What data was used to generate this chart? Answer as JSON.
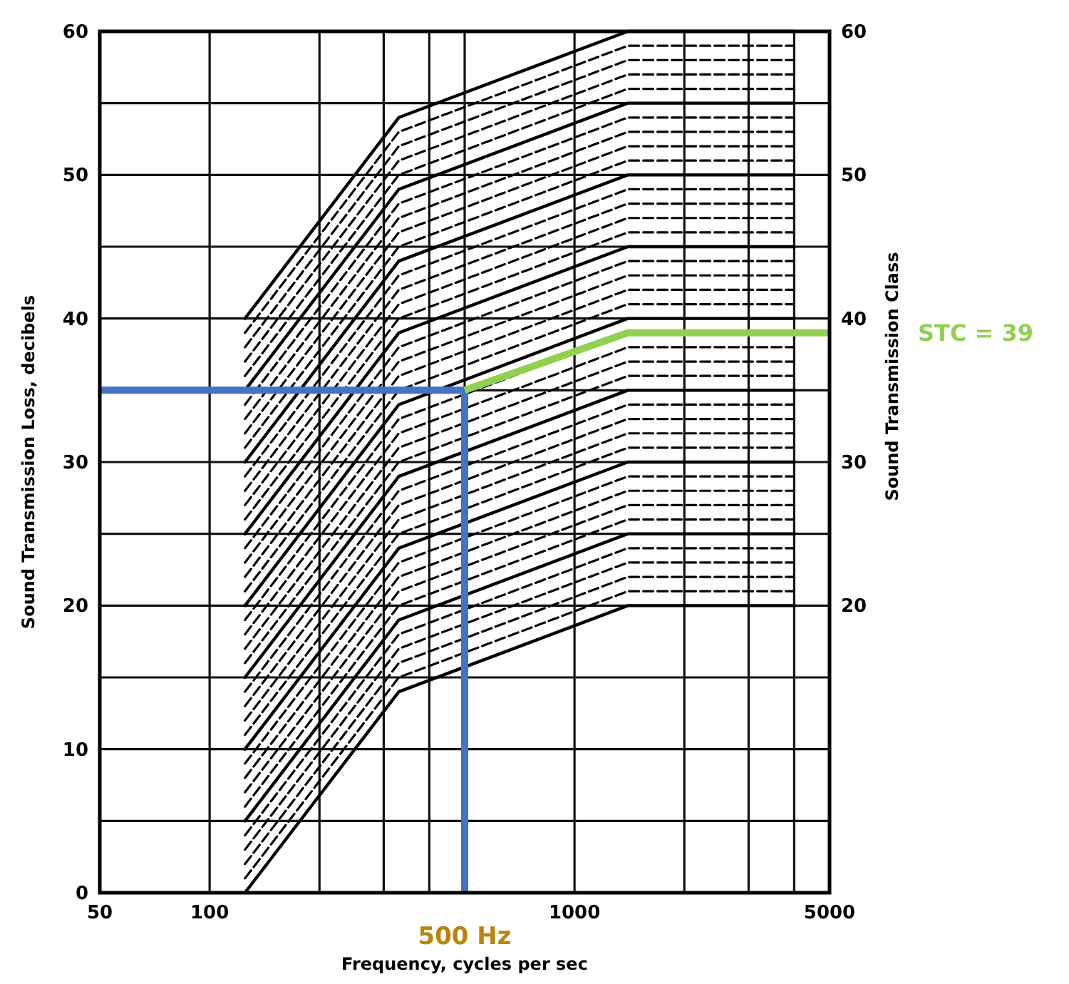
{
  "chart_data": {
    "type": "line",
    "xlabel": "Frequency, cycles per sec",
    "ylabel": "Sound Transmission Loss, decibels",
    "y2label": "Sound Transmission Class",
    "log": "x",
    "grid": true,
    "xlim": [
      50,
      5000
    ],
    "xticks": [
      50,
      100,
      {
        "value": 200,
        "label": null
      },
      {
        "value": 300,
        "label": null
      },
      {
        "value": 400,
        "label": null
      },
      {
        "value": 500,
        "label": null
      },
      1000,
      {
        "value": 2000,
        "label": null
      },
      {
        "value": 3000,
        "label": null
      },
      {
        "value": 4000,
        "label": null
      },
      5000
    ],
    "ylim": [
      0,
      60
    ],
    "yticks": [
      0,
      {
        "value": 5,
        "label": null
      },
      10,
      {
        "value": 15,
        "label": null
      },
      20,
      {
        "value": 25,
        "label": null
      },
      30,
      {
        "value": 35,
        "label": null
      },
      40,
      {
        "value": 45,
        "label": null
      },
      50,
      {
        "value": 55,
        "label": null
      },
      60
    ],
    "y2lim": [
      0,
      60
    ],
    "y2ticks": [
      20,
      30,
      40,
      50,
      60
    ],
    "x": [
      125,
      330,
      1400,
      4000
    ],
    "series": [
      {
        "color": "#000000",
        "line_style": "solid",
        "values": [
          0,
          14,
          20,
          20
        ]
      },
      {
        "color": "#000000",
        "line_style": "dashed",
        "values": [
          1,
          15,
          21,
          21
        ]
      },
      {
        "color": "#000000",
        "line_style": "dashed",
        "values": [
          2,
          16,
          22,
          22
        ]
      },
      {
        "color": "#000000",
        "line_style": "dashed",
        "values": [
          3,
          17,
          23,
          23
        ]
      },
      {
        "color": "#000000",
        "line_style": "dashed",
        "values": [
          4,
          18,
          24,
          24
        ]
      },
      {
        "color": "#000000",
        "line_style": "solid",
        "values": [
          5,
          19,
          25,
          25
        ]
      },
      {
        "color": "#000000",
        "line_style": "dashed",
        "values": [
          6,
          20,
          26,
          26
        ]
      },
      {
        "color": "#000000",
        "line_style": "dashed",
        "values": [
          7,
          21,
          27,
          27
        ]
      },
      {
        "color": "#000000",
        "line_style": "dashed",
        "values": [
          8,
          22,
          28,
          28
        ]
      },
      {
        "color": "#000000",
        "line_style": "dashed",
        "values": [
          9,
          23,
          29,
          29
        ]
      },
      {
        "color": "#000000",
        "line_style": "solid",
        "values": [
          10,
          24,
          30,
          30
        ]
      },
      {
        "color": "#000000",
        "line_style": "dashed",
        "values": [
          11,
          25,
          31,
          31
        ]
      },
      {
        "color": "#000000",
        "line_style": "dashed",
        "values": [
          12,
          26,
          32,
          32
        ]
      },
      {
        "color": "#000000",
        "line_style": "dashed",
        "values": [
          13,
          27,
          33,
          33
        ]
      },
      {
        "color": "#000000",
        "line_style": "dashed",
        "values": [
          14,
          28,
          34,
          34
        ]
      },
      {
        "color": "#000000",
        "line_style": "solid",
        "values": [
          15,
          29,
          35,
          35
        ]
      },
      {
        "color": "#000000",
        "line_style": "dashed",
        "values": [
          16,
          30,
          36,
          36
        ]
      },
      {
        "color": "#000000",
        "line_style": "dashed",
        "values": [
          17,
          31,
          37,
          37
        ]
      },
      {
        "color": "#000000",
        "line_style": "dashed",
        "values": [
          18,
          32,
          38,
          38
        ]
      },
      {
        "color": "#000000",
        "line_style": "dashed",
        "values": [
          19,
          33,
          39,
          39
        ]
      },
      {
        "color": "#000000",
        "line_style": "solid",
        "values": [
          20,
          34,
          40,
          40
        ]
      },
      {
        "color": "#000000",
        "line_style": "dashed",
        "values": [
          21,
          35,
          41,
          41
        ]
      },
      {
        "color": "#000000",
        "line_style": "dashed",
        "values": [
          22,
          36,
          42,
          42
        ]
      },
      {
        "color": "#000000",
        "line_style": "dashed",
        "values": [
          23,
          37,
          43,
          43
        ]
      },
      {
        "color": "#000000",
        "line_style": "dashed",
        "values": [
          24,
          38,
          44,
          44
        ]
      },
      {
        "color": "#000000",
        "line_style": "solid",
        "values": [
          25,
          39,
          45,
          45
        ]
      },
      {
        "color": "#000000",
        "line_style": "dashed",
        "values": [
          26,
          40,
          46,
          46
        ]
      },
      {
        "color": "#000000",
        "line_style": "dashed",
        "values": [
          27,
          41,
          47,
          47
        ]
      },
      {
        "color": "#000000",
        "line_style": "dashed",
        "values": [
          28,
          42,
          48,
          48
        ]
      },
      {
        "color": "#000000",
        "line_style": "dashed",
        "values": [
          29,
          43,
          49,
          49
        ]
      },
      {
        "color": "#000000",
        "line_style": "solid",
        "values": [
          30,
          44,
          50,
          50
        ]
      },
      {
        "color": "#000000",
        "line_style": "dashed",
        "values": [
          31,
          45,
          51,
          51
        ]
      },
      {
        "color": "#000000",
        "line_style": "dashed",
        "values": [
          32,
          46,
          52,
          52
        ]
      },
      {
        "color": "#000000",
        "line_style": "dashed",
        "values": [
          33,
          47,
          53,
          53
        ]
      },
      {
        "color": "#000000",
        "line_style": "dashed",
        "values": [
          34,
          48,
          54,
          54
        ]
      },
      {
        "color": "#000000",
        "line_style": "solid",
        "values": [
          35,
          49,
          55,
          55
        ]
      },
      {
        "color": "#000000",
        "line_style": "dashed",
        "values": [
          36,
          50,
          56,
          56
        ]
      },
      {
        "color": "#000000",
        "line_style": "dashed",
        "values": [
          37,
          51,
          57,
          57
        ]
      },
      {
        "color": "#000000",
        "line_style": "dashed",
        "values": [
          38,
          52,
          58,
          58
        ]
      },
      {
        "color": "#000000",
        "line_style": "dashed",
        "values": [
          39,
          53,
          59,
          59
        ]
      },
      {
        "color": "#000000",
        "line_style": "solid",
        "values": [
          40,
          54,
          60,
          60
        ]
      },
      {
        "color": "#4472c4",
        "line_style": "solid",
        "x": [
          50,
          500
        ],
        "values": [
          35,
          35
        ]
      },
      {
        "color": "#4472c4",
        "line_style": "solid",
        "x": [
          500,
          500
        ],
        "values": [
          35,
          0
        ]
      },
      {
        "color": "#92d050",
        "line_style": "solid",
        "x": [
          500,
          1400,
          5000
        ],
        "values": [
          35,
          39,
          39
        ]
      }
    ],
    "annotations": [
      {
        "text": "500 Hz",
        "x": 500,
        "y": 0
      },
      "STC = 39"
    ]
  }
}
